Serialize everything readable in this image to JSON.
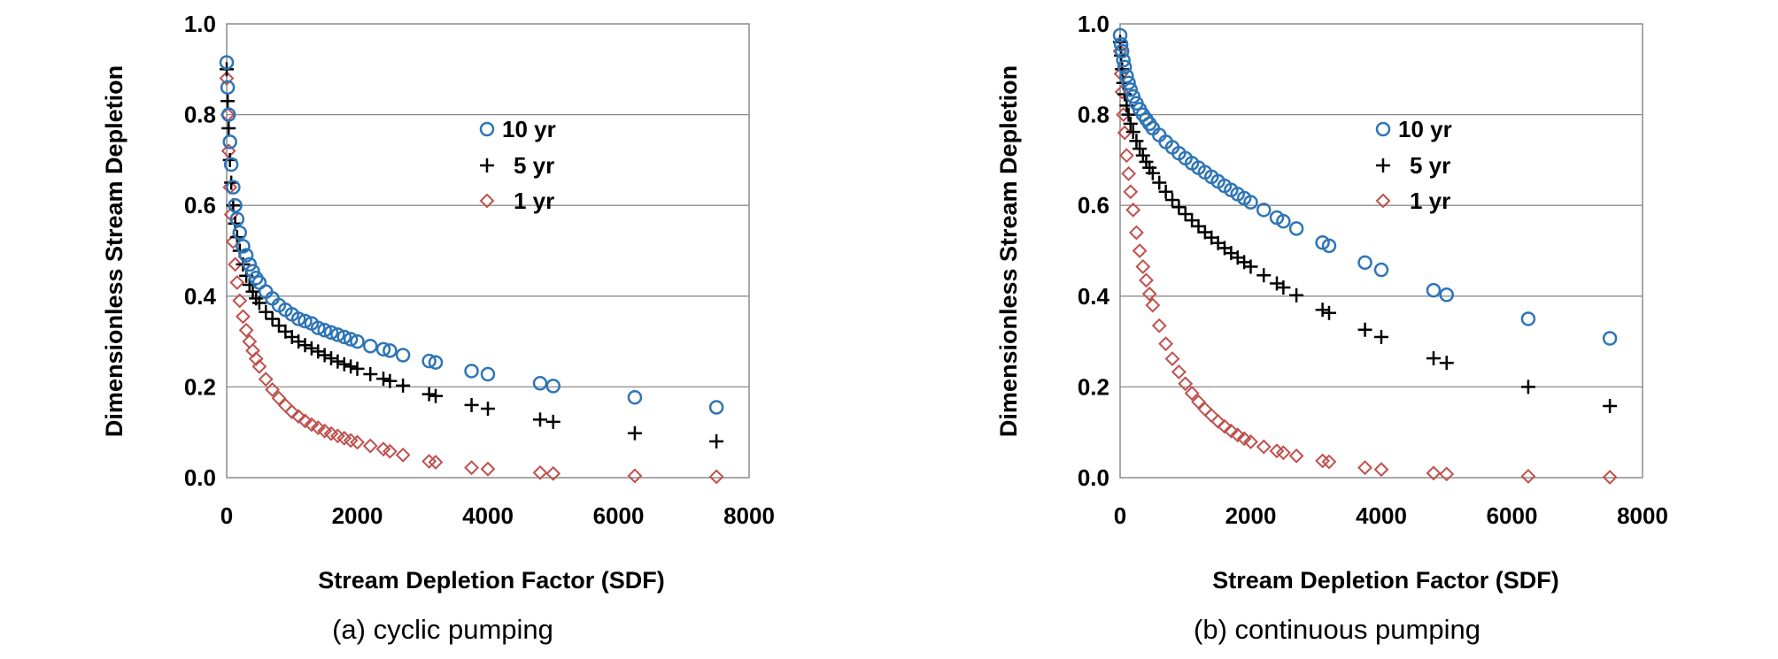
{
  "chart_data": [
    {
      "type": "scatter",
      "caption": "(a) cyclic pumping",
      "xlabel": "Stream Depletion Factor (SDF)",
      "ylabel": "Dimensionless Stream Depletion",
      "xlim": [
        0,
        8000
      ],
      "ylim": [
        0,
        1.0
      ],
      "xticks": [
        0,
        2000,
        4000,
        6000,
        8000
      ],
      "yticks": [
        0.0,
        0.2,
        0.4,
        0.6,
        0.8,
        1.0
      ],
      "ytick_labels": [
        "0.0",
        "0.2",
        "0.4",
        "0.6",
        "0.8",
        "1.0"
      ],
      "grid": "horizontal",
      "legend_position": "top-center",
      "series": [
        {
          "name": "10 yr",
          "marker": "circle",
          "color": "#2e75b6",
          "x": [
            0,
            15,
            30,
            50,
            70,
            100,
            130,
            160,
            200,
            250,
            300,
            350,
            400,
            450,
            500,
            600,
            700,
            800,
            900,
            1000,
            1100,
            1200,
            1300,
            1400,
            1500,
            1600,
            1700,
            1800,
            1900,
            2000,
            2200,
            2400,
            2500,
            2700,
            3100,
            3200,
            3750,
            4000,
            4800,
            5000,
            6250,
            7500
          ],
          "y": [
            0.915,
            0.86,
            0.8,
            0.74,
            0.69,
            0.64,
            0.6,
            0.57,
            0.54,
            0.51,
            0.49,
            0.47,
            0.455,
            0.44,
            0.43,
            0.41,
            0.395,
            0.38,
            0.37,
            0.36,
            0.35,
            0.345,
            0.34,
            0.33,
            0.325,
            0.32,
            0.315,
            0.31,
            0.305,
            0.3,
            0.29,
            0.283,
            0.28,
            0.27,
            0.257,
            0.254,
            0.235,
            0.228,
            0.208,
            0.202,
            0.177,
            0.155
          ]
        },
        {
          "name": "5 yr",
          "marker": "plus",
          "color": "#000000",
          "x": [
            0,
            15,
            30,
            50,
            70,
            100,
            130,
            160,
            200,
            250,
            300,
            350,
            400,
            450,
            500,
            600,
            700,
            800,
            900,
            1000,
            1100,
            1200,
            1300,
            1400,
            1500,
            1600,
            1700,
            1800,
            1900,
            2000,
            2200,
            2400,
            2500,
            2700,
            3100,
            3200,
            3750,
            4000,
            4800,
            5000,
            6250,
            7500
          ],
          "y": [
            0.9,
            0.83,
            0.77,
            0.7,
            0.65,
            0.6,
            0.56,
            0.53,
            0.5,
            0.47,
            0.445,
            0.425,
            0.41,
            0.395,
            0.385,
            0.365,
            0.35,
            0.335,
            0.322,
            0.31,
            0.3,
            0.292,
            0.285,
            0.278,
            0.27,
            0.263,
            0.256,
            0.25,
            0.245,
            0.24,
            0.228,
            0.218,
            0.213,
            0.203,
            0.184,
            0.18,
            0.16,
            0.152,
            0.128,
            0.123,
            0.098,
            0.08
          ]
        },
        {
          "name": "1 yr",
          "marker": "diamond",
          "color": "#c0504d",
          "x": [
            0,
            15,
            30,
            50,
            70,
            100,
            130,
            160,
            200,
            250,
            300,
            350,
            400,
            450,
            500,
            600,
            700,
            800,
            900,
            1000,
            1100,
            1200,
            1300,
            1400,
            1500,
            1600,
            1700,
            1800,
            1900,
            2000,
            2200,
            2400,
            2500,
            2700,
            3100,
            3200,
            3750,
            4000,
            4800,
            5000,
            6250,
            7500
          ],
          "y": [
            0.88,
            0.8,
            0.72,
            0.64,
            0.58,
            0.52,
            0.47,
            0.43,
            0.39,
            0.355,
            0.325,
            0.3,
            0.28,
            0.262,
            0.245,
            0.217,
            0.194,
            0.175,
            0.159,
            0.145,
            0.135,
            0.125,
            0.117,
            0.11,
            0.103,
            0.097,
            0.092,
            0.087,
            0.082,
            0.078,
            0.07,
            0.063,
            0.058,
            0.05,
            0.036,
            0.034,
            0.022,
            0.019,
            0.011,
            0.009,
            0.004,
            0.002
          ]
        }
      ]
    },
    {
      "type": "scatter",
      "caption": "(b) continuous pumping",
      "xlabel": "Stream Depletion Factor (SDF)",
      "ylabel": "Dimensionless Stream Depletion",
      "xlim": [
        0,
        8000
      ],
      "ylim": [
        0,
        1.0
      ],
      "xticks": [
        0,
        2000,
        4000,
        6000,
        8000
      ],
      "yticks": [
        0.0,
        0.2,
        0.4,
        0.6,
        0.8,
        1.0
      ],
      "ytick_labels": [
        "0.0",
        "0.2",
        "0.4",
        "0.6",
        "0.8",
        "1.0"
      ],
      "grid": "horizontal",
      "legend_position": "top-center",
      "series": [
        {
          "name": "10 yr",
          "marker": "circle",
          "color": "#2e75b6",
          "x": [
            0,
            15,
            30,
            50,
            70,
            100,
            130,
            160,
            200,
            250,
            300,
            350,
            400,
            450,
            500,
            600,
            700,
            800,
            900,
            1000,
            1100,
            1200,
            1300,
            1400,
            1500,
            1600,
            1700,
            1800,
            1900,
            2000,
            2200,
            2400,
            2500,
            2700,
            3100,
            3200,
            3750,
            4000,
            4800,
            5000,
            6250,
            7500
          ],
          "y": [
            0.975,
            0.955,
            0.94,
            0.92,
            0.905,
            0.885,
            0.87,
            0.855,
            0.84,
            0.825,
            0.812,
            0.8,
            0.79,
            0.78,
            0.77,
            0.755,
            0.74,
            0.728,
            0.715,
            0.704,
            0.693,
            0.683,
            0.673,
            0.663,
            0.653,
            0.643,
            0.634,
            0.625,
            0.616,
            0.607,
            0.59,
            0.573,
            0.565,
            0.549,
            0.518,
            0.511,
            0.474,
            0.458,
            0.413,
            0.403,
            0.35,
            0.307
          ]
        },
        {
          "name": "5 yr",
          "marker": "plus",
          "color": "#000000",
          "x": [
            0,
            15,
            30,
            50,
            70,
            100,
            130,
            160,
            200,
            250,
            300,
            350,
            400,
            450,
            500,
            600,
            700,
            800,
            900,
            1000,
            1100,
            1200,
            1300,
            1400,
            1500,
            1600,
            1700,
            1800,
            1900,
            2000,
            2200,
            2400,
            2500,
            2700,
            3100,
            3200,
            3750,
            4000,
            4800,
            5000,
            6250,
            7500
          ],
          "y": [
            0.96,
            0.93,
            0.9,
            0.87,
            0.845,
            0.82,
            0.8,
            0.78,
            0.762,
            0.742,
            0.725,
            0.71,
            0.696,
            0.683,
            0.671,
            0.65,
            0.63,
            0.612,
            0.596,
            0.581,
            0.567,
            0.554,
            0.541,
            0.529,
            0.517,
            0.506,
            0.495,
            0.485,
            0.475,
            0.465,
            0.446,
            0.428,
            0.419,
            0.402,
            0.37,
            0.363,
            0.326,
            0.31,
            0.263,
            0.253,
            0.2,
            0.158
          ]
        },
        {
          "name": "1 yr",
          "marker": "diamond",
          "color": "#c0504d",
          "x": [
            0,
            15,
            30,
            50,
            70,
            100,
            130,
            160,
            200,
            250,
            300,
            350,
            400,
            450,
            500,
            600,
            700,
            800,
            900,
            1000,
            1100,
            1200,
            1300,
            1400,
            1500,
            1600,
            1700,
            1800,
            1900,
            2000,
            2200,
            2400,
            2500,
            2700,
            3100,
            3200,
            3750,
            4000,
            4800,
            5000,
            6250,
            7500
          ],
          "y": [
            0.94,
            0.89,
            0.85,
            0.8,
            0.76,
            0.71,
            0.67,
            0.63,
            0.59,
            0.54,
            0.5,
            0.465,
            0.435,
            0.405,
            0.38,
            0.335,
            0.295,
            0.262,
            0.233,
            0.207,
            0.186,
            0.167,
            0.151,
            0.137,
            0.124,
            0.113,
            0.103,
            0.094,
            0.086,
            0.079,
            0.068,
            0.059,
            0.055,
            0.048,
            0.037,
            0.035,
            0.022,
            0.018,
            0.01,
            0.008,
            0.003,
            0.001
          ]
        }
      ]
    }
  ]
}
